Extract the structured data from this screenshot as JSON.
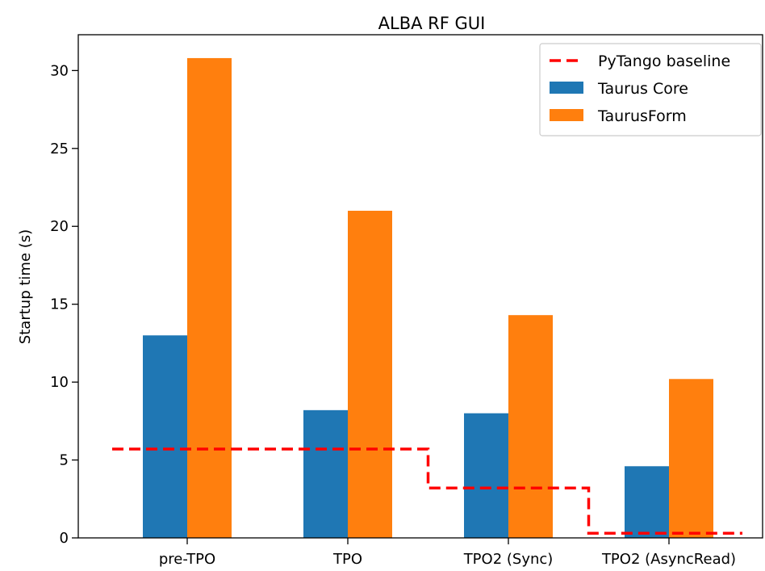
{
  "chart_data": {
    "type": "bar",
    "title": "ALBA RF GUI",
    "xlabel": "",
    "ylabel": "Startup time (s)",
    "categories": [
      "pre-TPO",
      "TPO",
      "TPO2 (Sync)",
      "TPO2 (AsyncRead)"
    ],
    "series": [
      {
        "name": "Taurus Core",
        "values": [
          13.0,
          8.2,
          8.0,
          4.6
        ],
        "color": "#1f77b4"
      },
      {
        "name": "TaurusForm",
        "values": [
          30.8,
          21.0,
          14.3,
          10.2
        ],
        "color": "#ff7f0e"
      }
    ],
    "baseline": {
      "name": "PyTango baseline",
      "type": "step-line",
      "style": "dashed",
      "color": "#ff0000",
      "values": [
        5.7,
        5.7,
        3.2,
        0.3
      ]
    },
    "ylim": [
      0,
      32.3
    ],
    "yticks": [
      0,
      5,
      10,
      15,
      20,
      25,
      30
    ],
    "legend_position": "top-right",
    "grid": false
  }
}
